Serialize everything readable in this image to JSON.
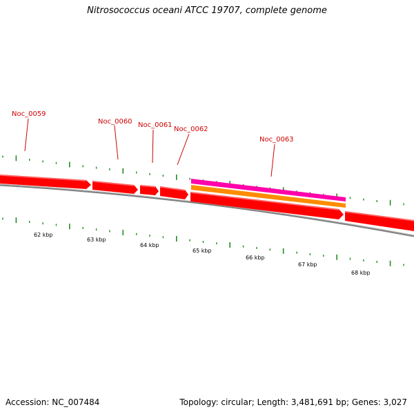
{
  "title": "Nitrosococcus oceani ATCC 19707, complete genome",
  "footer": {
    "accession": "Accession: NC_007484",
    "summary": "Topology: circular; Length: 3,481,691 bp; Genes: 3,027"
  },
  "colors": {
    "gene_fill": "#ff0000",
    "gene_highlight": "#ff6060",
    "label": "#cc0000",
    "backbone": "#808080",
    "tick": "#228b22",
    "feature_magenta": "#ff00aa",
    "feature_orange": "#ff8c00"
  },
  "genes": [
    {
      "name": "Noc_0059"
    },
    {
      "name": "Noc_0060"
    },
    {
      "name": "Noc_0061"
    },
    {
      "name": "Noc_0062"
    },
    {
      "name": "Noc_0063"
    }
  ],
  "scale_labels": [
    "62 kbp",
    "63 kbp",
    "64 kbp",
    "65 kbp",
    "66 kbp",
    "67 kbp",
    "68 kbp"
  ]
}
